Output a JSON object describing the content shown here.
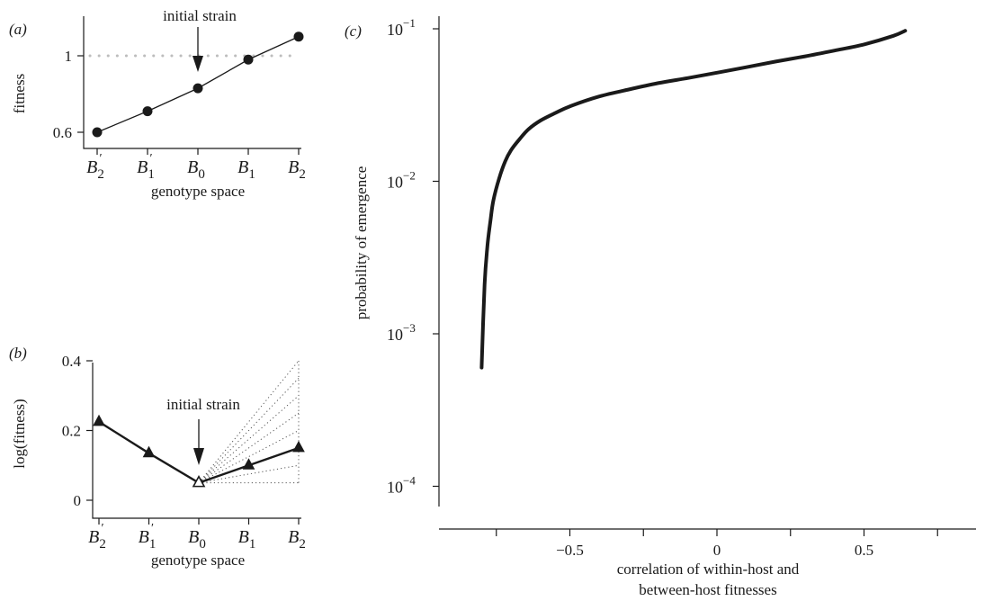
{
  "chart_data": [
    {
      "panel": "(a)",
      "type": "line",
      "annotation": "initial strain",
      "xlabel": "genotype space",
      "ylabel": "fitness",
      "categories": [
        "B2'",
        "B1'",
        "B0",
        "B1",
        "B2"
      ],
      "values": [
        0.6,
        0.71,
        0.83,
        0.98,
        1.1
      ],
      "yticks": [
        0.6,
        1.0
      ],
      "ylim": [
        0.55,
        1.16
      ],
      "reference_line": 1.0,
      "initial_strain_index": 2
    },
    {
      "panel": "(b)",
      "type": "line",
      "annotation": "initial strain",
      "xlabel": "genotype space",
      "ylabel": "log(fitness)",
      "categories": [
        "B2'",
        "B1'",
        "B0",
        "B1",
        "B2"
      ],
      "values": [
        0.225,
        0.135,
        0.05,
        0.1,
        0.15
      ],
      "dotted_end_values": [
        0.05,
        0.1,
        0.15,
        0.2,
        0.25,
        0.3,
        0.35,
        0.4
      ],
      "yticks": [
        0,
        0.2,
        0.4
      ],
      "ylim": [
        -0.01,
        0.42
      ],
      "initial_strain_index": 2
    },
    {
      "panel": "(c)",
      "type": "line",
      "xlabel": [
        "correlation of within-host and",
        "between-host fitnesses"
      ],
      "ylabel": "probability of emergence",
      "yscale": "log",
      "xlim": [
        -0.85,
        0.82
      ],
      "ylim": [
        7e-05,
        0.13
      ],
      "xticklabels": [
        -0.5,
        0,
        0.5
      ],
      "xminor": [
        -0.75,
        -0.25,
        0.25,
        0.75
      ],
      "yticks_exp": [
        -4,
        -3,
        -2,
        -1
      ],
      "ytick_base": "10",
      "series": [
        {
          "x": [
            -0.8,
            -0.79,
            -0.78,
            -0.77,
            -0.76,
            -0.74,
            -0.72,
            -0.7,
            -0.67,
            -0.64,
            -0.6,
            -0.55,
            -0.5,
            -0.4,
            -0.3,
            -0.2,
            -0.1,
            0,
            0.1,
            0.2,
            0.3,
            0.4,
            0.5,
            0.6,
            0.64
          ],
          "y": [
            0.0006,
            0.0021,
            0.0038,
            0.0055,
            0.0075,
            0.0105,
            0.0135,
            0.016,
            0.019,
            0.022,
            0.025,
            0.028,
            0.031,
            0.036,
            0.04,
            0.044,
            0.0475,
            0.0515,
            0.056,
            0.061,
            0.066,
            0.072,
            0.079,
            0.09,
            0.097
          ]
        }
      ]
    }
  ]
}
